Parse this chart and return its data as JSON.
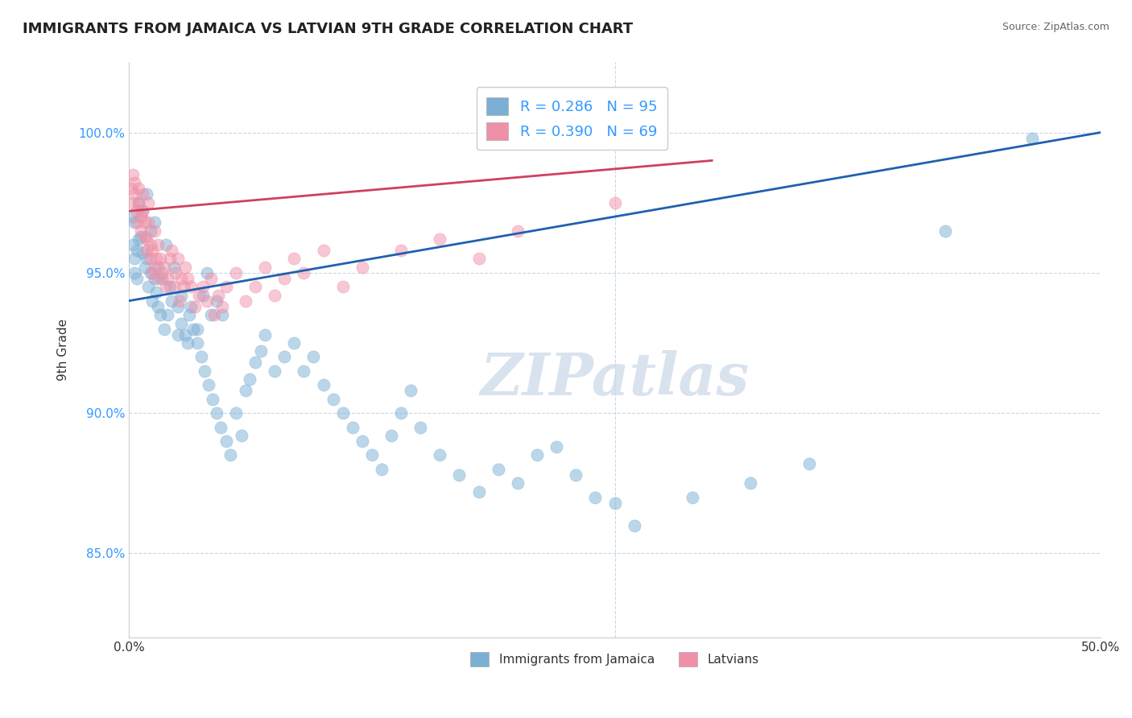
{
  "title": "IMMIGRANTS FROM JAMAICA VS LATVIAN 9TH GRADE CORRELATION CHART",
  "source_text": "Source: ZipAtlas.com",
  "ylabel": "9th Grade",
  "xlim": [
    0.0,
    0.5
  ],
  "ylim": [
    0.82,
    1.025
  ],
  "xtick_labels": [
    "0.0%",
    "50.0%"
  ],
  "xtick_vals": [
    0.0,
    0.5
  ],
  "ytick_labels": [
    "85.0%",
    "90.0%",
    "95.0%",
    "100.0%"
  ],
  "ytick_vals": [
    0.85,
    0.9,
    0.95,
    1.0
  ],
  "legend_label_1": "R = 0.286   N = 95",
  "legend_label_2": "R = 0.390   N = 69",
  "legend_bottom": [
    "Immigrants from Jamaica",
    "Latvians"
  ],
  "blue_color": "#7bafd4",
  "pink_color": "#f090a8",
  "blue_line_color": "#2060b0",
  "pink_line_color": "#d04060",
  "watermark_text": "ZIPatlas",
  "watermark_color": "#c8d8e8",
  "blue_scatter_x": [
    0.002,
    0.003,
    0.004,
    0.005,
    0.003,
    0.006,
    0.007,
    0.008,
    0.004,
    0.009,
    0.01,
    0.012,
    0.011,
    0.013,
    0.015,
    0.014,
    0.016,
    0.018,
    0.02,
    0.022,
    0.025,
    0.027,
    0.03,
    0.032,
    0.035,
    0.038,
    0.04,
    0.042,
    0.045,
    0.048,
    0.002,
    0.003,
    0.005,
    0.007,
    0.009,
    0.011,
    0.013,
    0.015,
    0.017,
    0.019,
    0.021,
    0.023,
    0.025,
    0.027,
    0.029,
    0.031,
    0.033,
    0.035,
    0.037,
    0.039,
    0.041,
    0.043,
    0.045,
    0.047,
    0.05,
    0.052,
    0.055,
    0.058,
    0.06,
    0.062,
    0.065,
    0.068,
    0.07,
    0.075,
    0.08,
    0.085,
    0.09,
    0.095,
    0.1,
    0.105,
    0.11,
    0.115,
    0.12,
    0.125,
    0.13,
    0.135,
    0.14,
    0.145,
    0.15,
    0.16,
    0.17,
    0.18,
    0.19,
    0.2,
    0.21,
    0.22,
    0.23,
    0.24,
    0.25,
    0.26,
    0.29,
    0.32,
    0.35,
    0.42,
    0.465
  ],
  "blue_scatter_y": [
    0.96,
    0.955,
    0.958,
    0.962,
    0.95,
    0.963,
    0.957,
    0.952,
    0.948,
    0.955,
    0.945,
    0.94,
    0.95,
    0.948,
    0.938,
    0.943,
    0.935,
    0.93,
    0.935,
    0.94,
    0.928,
    0.932,
    0.925,
    0.938,
    0.93,
    0.942,
    0.95,
    0.935,
    0.94,
    0.935,
    0.97,
    0.968,
    0.975,
    0.972,
    0.978,
    0.965,
    0.968,
    0.952,
    0.948,
    0.96,
    0.945,
    0.952,
    0.938,
    0.942,
    0.928,
    0.935,
    0.93,
    0.925,
    0.92,
    0.915,
    0.91,
    0.905,
    0.9,
    0.895,
    0.89,
    0.885,
    0.9,
    0.892,
    0.908,
    0.912,
    0.918,
    0.922,
    0.928,
    0.915,
    0.92,
    0.925,
    0.915,
    0.92,
    0.91,
    0.905,
    0.9,
    0.895,
    0.89,
    0.885,
    0.88,
    0.892,
    0.9,
    0.908,
    0.895,
    0.885,
    0.878,
    0.872,
    0.88,
    0.875,
    0.885,
    0.888,
    0.878,
    0.87,
    0.868,
    0.86,
    0.87,
    0.875,
    0.882,
    0.965,
    0.998
  ],
  "pink_scatter_x": [
    0.001,
    0.002,
    0.002,
    0.003,
    0.003,
    0.004,
    0.004,
    0.005,
    0.005,
    0.006,
    0.006,
    0.007,
    0.007,
    0.008,
    0.008,
    0.009,
    0.009,
    0.01,
    0.01,
    0.011,
    0.011,
    0.012,
    0.012,
    0.013,
    0.013,
    0.014,
    0.015,
    0.015,
    0.016,
    0.017,
    0.018,
    0.019,
    0.02,
    0.021,
    0.022,
    0.023,
    0.024,
    0.025,
    0.026,
    0.027,
    0.028,
    0.029,
    0.03,
    0.032,
    0.034,
    0.036,
    0.038,
    0.04,
    0.042,
    0.044,
    0.046,
    0.048,
    0.05,
    0.055,
    0.06,
    0.065,
    0.07,
    0.075,
    0.08,
    0.085,
    0.09,
    0.1,
    0.11,
    0.12,
    0.14,
    0.16,
    0.18,
    0.2,
    0.25
  ],
  "pink_scatter_y": [
    0.98,
    0.975,
    0.985,
    0.982,
    0.978,
    0.972,
    0.968,
    0.975,
    0.98,
    0.97,
    0.965,
    0.972,
    0.978,
    0.968,
    0.963,
    0.958,
    0.962,
    0.968,
    0.975,
    0.96,
    0.955,
    0.95,
    0.958,
    0.952,
    0.965,
    0.955,
    0.96,
    0.948,
    0.955,
    0.95,
    0.952,
    0.945,
    0.948,
    0.955,
    0.958,
    0.945,
    0.95,
    0.955,
    0.94,
    0.948,
    0.945,
    0.952,
    0.948,
    0.945,
    0.938,
    0.942,
    0.945,
    0.94,
    0.948,
    0.935,
    0.942,
    0.938,
    0.945,
    0.95,
    0.94,
    0.945,
    0.952,
    0.942,
    0.948,
    0.955,
    0.95,
    0.958,
    0.945,
    0.952,
    0.958,
    0.962,
    0.955,
    0.965,
    0.975
  ],
  "blue_line_x": [
    0.0,
    0.5
  ],
  "blue_line_y": [
    0.94,
    1.0
  ],
  "pink_line_x": [
    0.0,
    0.3
  ],
  "pink_line_y": [
    0.972,
    0.99
  ],
  "background_color": "#ffffff",
  "grid_color": "#c8d8e8"
}
